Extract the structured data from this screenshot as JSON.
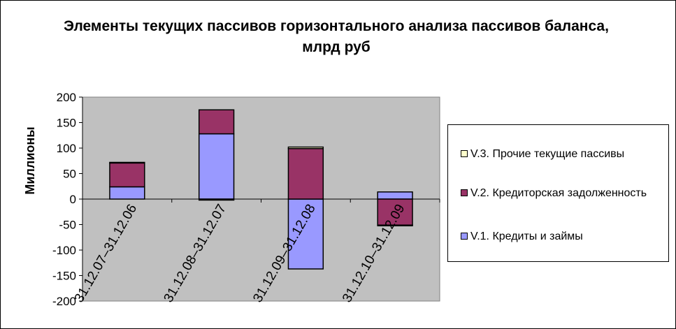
{
  "chart_data": {
    "type": "bar",
    "stacked": true,
    "title": "Элементы текущих пассивов горизонтального анализа пассивов баланса, млрд руб",
    "ylabel": "Миллионы",
    "xlabel": "",
    "ylim": [
      -200,
      200
    ],
    "yticks": [
      -200,
      -150,
      -100,
      -50,
      0,
      50,
      100,
      150,
      200
    ],
    "categories": [
      "31.12.07–31.12.06",
      "31.12.08–31.12.07",
      "31.12.09–31.12.08",
      "31.12.10–31.12.09"
    ],
    "series": [
      {
        "name": "V.1. Кредиты и займы",
        "color": "#9999FF",
        "values": [
          24,
          128,
          -137,
          14
        ]
      },
      {
        "name": "V.2. Кредиторская задолженность",
        "color": "#993366",
        "values": [
          47,
          47,
          99,
          -51
        ]
      },
      {
        "name": "V.3. Прочие текущие пассивы",
        "color": "#FFFFCC",
        "values": [
          1,
          -2,
          3,
          -1
        ]
      }
    ],
    "legend_order": [
      2,
      1,
      0
    ],
    "legend_position": "right",
    "plot_background": "#C0C0C0",
    "grid": false
  }
}
